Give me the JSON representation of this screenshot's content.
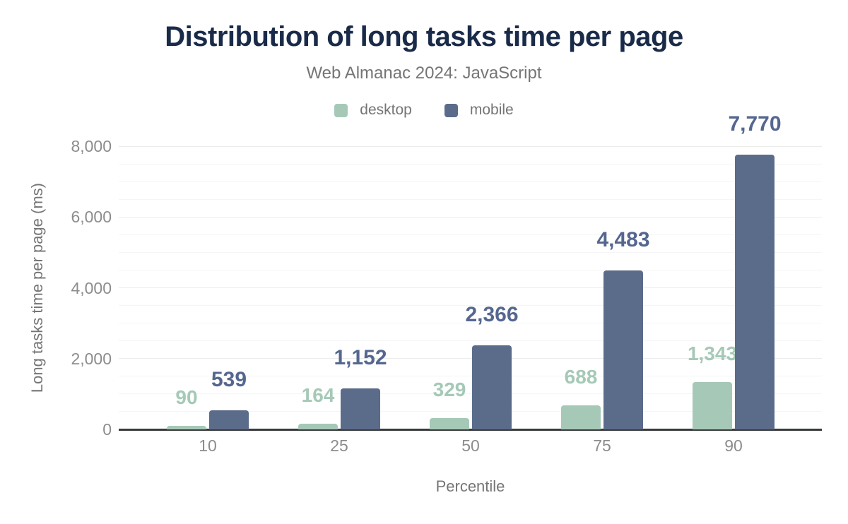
{
  "header": {
    "title": "Distribution of long tasks time per page",
    "subtitle": "Web Almanac 2024: JavaScript"
  },
  "legend": [
    {
      "label": "desktop",
      "color": "#a6c9b7"
    },
    {
      "label": "mobile",
      "color": "#5b6c8b"
    }
  ],
  "chart_data": {
    "type": "bar",
    "title": "Distribution of long tasks time per page",
    "subtitle": "Web Almanac 2024: JavaScript",
    "categories": [
      "10",
      "25",
      "50",
      "75",
      "90"
    ],
    "series": [
      {
        "name": "desktop",
        "color": "#a6c9b7",
        "label_color": "#a5c9b7",
        "values": [
          90,
          164,
          329,
          688,
          1343
        ],
        "labels": [
          "90",
          "164",
          "329",
          "688",
          "1,343"
        ]
      },
      {
        "name": "mobile",
        "color": "#5b6c8b",
        "label_color": "#55678f",
        "values": [
          539,
          1152,
          2366,
          4483,
          7770
        ],
        "labels": [
          "539",
          "1,152",
          "2,366",
          "4,483",
          "7,770"
        ]
      }
    ],
    "xlabel": "Percentile",
    "ylabel": "Long tasks time per page (ms)",
    "ylim": [
      0,
      8000
    ],
    "yticks": [
      "0",
      "2,000",
      "4,000",
      "6,000",
      "8,000"
    ],
    "ytick_values": [
      0,
      2000,
      4000,
      6000,
      8000
    ],
    "minor_grid_interval": 500,
    "grid": true,
    "legend_position": "top"
  },
  "colors": {
    "title": "#1a2b49",
    "subtitle": "#757575",
    "axis_text": "#8c8c8c",
    "axis_line": "#37393b",
    "grid_minor": "#f5f5f5",
    "grid_major": "#ececec"
  }
}
